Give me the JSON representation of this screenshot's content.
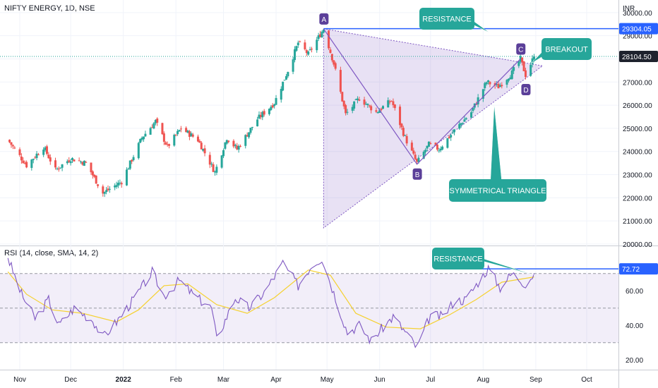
{
  "header": {
    "symbol": "NIFTY ENERGY, 1D, NSE",
    "currency": "INR"
  },
  "rsi_header": "RSI (14, close, SMA, 14, 2)",
  "colors": {
    "up": "#26a69a",
    "down": "#ef5350",
    "resistance": "#2962ff",
    "callout": "#26a69a",
    "triangle": "#7e57c2",
    "rsi_line": "#7e57c2",
    "rsi_ma": "#f5d130",
    "price_tag": "#1e222d"
  },
  "chart_data": [
    {
      "type": "candlestick",
      "title": "NIFTY ENERGY, 1D, NSE",
      "ylabel": "INR",
      "ylim": [
        20000,
        30300
      ],
      "yticks": [
        20000,
        21000,
        22000,
        23000,
        24000,
        25000,
        26000,
        27000,
        28000,
        29000,
        30000
      ],
      "ytick_labels": [
        "20000.00",
        "21000.00",
        "22000.00",
        "23000.00",
        "24000.00",
        "25000.00",
        "26000.00",
        "27000.00",
        "28000.00",
        "29000.00",
        "30000.00"
      ],
      "x_labels": [
        "Nov",
        "Dec",
        "2022",
        "Feb",
        "Mar",
        "Apr",
        "May",
        "Jun",
        "Jul",
        "Aug",
        "Sep",
        "Oct"
      ],
      "x_label_dates": [
        "2021-11-01",
        "2021-12-01",
        "2022-01-01",
        "2022-02-01",
        "2022-03-01",
        "2022-04-01",
        "2022-05-01",
        "2022-06-01",
        "2022-07-01",
        "2022-08-01",
        "2022-09-01",
        "2022-10-01"
      ],
      "close_path": [
        {
          "date": "2021-10-25",
          "close": 24500
        },
        {
          "date": "2021-11-05",
          "close": 23400
        },
        {
          "date": "2021-11-15",
          "close": 24200
        },
        {
          "date": "2021-11-22",
          "close": 23200
        },
        {
          "date": "2021-12-01",
          "close": 23700
        },
        {
          "date": "2021-12-10",
          "close": 23500
        },
        {
          "date": "2021-12-20",
          "close": 22200
        },
        {
          "date": "2021-12-31",
          "close": 22700
        },
        {
          "date": "2022-01-12",
          "close": 24600
        },
        {
          "date": "2022-01-20",
          "close": 25300
        },
        {
          "date": "2022-01-27",
          "close": 24200
        },
        {
          "date": "2022-02-04",
          "close": 25000
        },
        {
          "date": "2022-02-14",
          "close": 24500
        },
        {
          "date": "2022-02-24",
          "close": 23100
        },
        {
          "date": "2022-03-03",
          "close": 24600
        },
        {
          "date": "2022-03-09",
          "close": 24100
        },
        {
          "date": "2022-03-21",
          "close": 25400
        },
        {
          "date": "2022-03-31",
          "close": 26100
        },
        {
          "date": "2022-04-08",
          "close": 27500
        },
        {
          "date": "2022-04-14",
          "close": 28700
        },
        {
          "date": "2022-04-20",
          "close": 28200
        },
        {
          "date": "2022-04-29",
          "close": 29300
        },
        {
          "date": "2022-05-05",
          "close": 27800
        },
        {
          "date": "2022-05-12",
          "close": 25600
        },
        {
          "date": "2022-05-20",
          "close": 26300
        },
        {
          "date": "2022-05-30",
          "close": 25700
        },
        {
          "date": "2022-06-08",
          "close": 26200
        },
        {
          "date": "2022-06-16",
          "close": 24600
        },
        {
          "date": "2022-06-23",
          "close": 23500
        },
        {
          "date": "2022-06-30",
          "close": 24300
        },
        {
          "date": "2022-07-06",
          "close": 24100
        },
        {
          "date": "2022-07-15",
          "close": 24900
        },
        {
          "date": "2022-07-25",
          "close": 25700
        },
        {
          "date": "2022-08-03",
          "close": 27000
        },
        {
          "date": "2022-08-10",
          "close": 26800
        },
        {
          "date": "2022-08-18",
          "close": 27400
        },
        {
          "date": "2022-08-23",
          "close": 28000
        },
        {
          "date": "2022-08-26",
          "close": 27300
        },
        {
          "date": "2022-08-31",
          "close": 28104.5
        }
      ],
      "price_tags": {
        "resistance": "29304.05",
        "last": "28104.50"
      },
      "levels": {
        "resistance": 29304.05,
        "last": 28104.5
      },
      "points": [
        {
          "label": "A",
          "date": "2022-04-29",
          "value": 29300
        },
        {
          "label": "B",
          "date": "2022-06-23",
          "value": 23450
        },
        {
          "label": "C",
          "date": "2022-08-23",
          "value": 28000
        },
        {
          "label": "D",
          "date": "2022-08-26",
          "value": 27100
        }
      ],
      "triangle": [
        {
          "date": "2022-04-29",
          "value": 29300
        },
        {
          "date": "2022-09-05",
          "value": 27700
        },
        {
          "date": "2022-04-29",
          "value": 20700
        }
      ],
      "annotations": {
        "resistance": "RESISTANCE",
        "breakout": "BREAKOUT",
        "pattern": "SYMMETRICAL TRIANGLE"
      }
    },
    {
      "type": "line",
      "title": "RSI (14, close, SMA, 14, 2)",
      "ylim": [
        16,
        85
      ],
      "yticks": [
        20,
        40,
        60
      ],
      "ytick_labels": [
        "20.00",
        "40.00",
        "60.00"
      ],
      "bands": [
        30,
        50,
        70
      ],
      "level": 72.72,
      "level_label": "72.72",
      "annotation": "RESISTANCE",
      "series": [
        {
          "points": [
            {
              "date": "2021-10-25",
              "value": 79
            },
            {
              "date": "2021-11-02",
              "value": 58
            },
            {
              "date": "2021-11-10",
              "value": 44
            },
            {
              "date": "2021-11-18",
              "value": 55
            },
            {
              "date": "2021-11-24",
              "value": 40
            },
            {
              "date": "2021-12-03",
              "value": 50
            },
            {
              "date": "2021-12-14",
              "value": 43
            },
            {
              "date": "2021-12-20",
              "value": 33
            },
            {
              "date": "2021-12-28",
              "value": 42
            },
            {
              "date": "2022-01-10",
              "value": 59
            },
            {
              "date": "2022-01-18",
              "value": 71
            },
            {
              "date": "2022-01-25",
              "value": 57
            },
            {
              "date": "2022-02-03",
              "value": 66
            },
            {
              "date": "2022-02-12",
              "value": 57
            },
            {
              "date": "2022-02-22",
              "value": 50
            },
            {
              "date": "2022-02-25",
              "value": 32
            },
            {
              "date": "2022-03-08",
              "value": 56
            },
            {
              "date": "2022-03-16",
              "value": 50
            },
            {
              "date": "2022-03-25",
              "value": 59
            },
            {
              "date": "2022-04-05",
              "value": 76
            },
            {
              "date": "2022-04-14",
              "value": 63
            },
            {
              "date": "2022-04-22",
              "value": 75
            },
            {
              "date": "2022-04-28",
              "value": 79
            },
            {
              "date": "2022-05-06",
              "value": 56
            },
            {
              "date": "2022-05-13",
              "value": 36
            },
            {
              "date": "2022-05-20",
              "value": 40
            },
            {
              "date": "2022-05-27",
              "value": 31
            },
            {
              "date": "2022-06-03",
              "value": 39
            },
            {
              "date": "2022-06-09",
              "value": 45
            },
            {
              "date": "2022-06-17",
              "value": 35
            },
            {
              "date": "2022-06-23",
              "value": 27
            },
            {
              "date": "2022-07-01",
              "value": 46
            },
            {
              "date": "2022-07-08",
              "value": 45
            },
            {
              "date": "2022-07-15",
              "value": 54
            },
            {
              "date": "2022-07-22",
              "value": 55
            },
            {
              "date": "2022-07-29",
              "value": 65
            },
            {
              "date": "2022-08-04",
              "value": 73
            },
            {
              "date": "2022-08-11",
              "value": 62
            },
            {
              "date": "2022-08-18",
              "value": 70
            },
            {
              "date": "2022-08-26",
              "value": 64
            },
            {
              "date": "2022-08-31",
              "value": 70
            }
          ]
        },
        {
          "points": [
            {
              "date": "2021-10-25",
              "value": 71
            },
            {
              "date": "2021-11-05",
              "value": 58
            },
            {
              "date": "2021-11-20",
              "value": 49
            },
            {
              "date": "2021-12-08",
              "value": 47
            },
            {
              "date": "2021-12-28",
              "value": 42
            },
            {
              "date": "2022-01-10",
              "value": 49
            },
            {
              "date": "2022-01-25",
              "value": 63
            },
            {
              "date": "2022-02-08",
              "value": 64
            },
            {
              "date": "2022-02-25",
              "value": 52
            },
            {
              "date": "2022-03-15",
              "value": 47
            },
            {
              "date": "2022-03-31",
              "value": 56
            },
            {
              "date": "2022-04-20",
              "value": 72
            },
            {
              "date": "2022-05-03",
              "value": 69
            },
            {
              "date": "2022-05-18",
              "value": 47
            },
            {
              "date": "2022-06-05",
              "value": 39
            },
            {
              "date": "2022-06-25",
              "value": 38
            },
            {
              "date": "2022-07-12",
              "value": 46
            },
            {
              "date": "2022-07-28",
              "value": 55
            },
            {
              "date": "2022-08-12",
              "value": 65
            },
            {
              "date": "2022-08-31",
              "value": 68
            }
          ]
        }
      ]
    }
  ]
}
